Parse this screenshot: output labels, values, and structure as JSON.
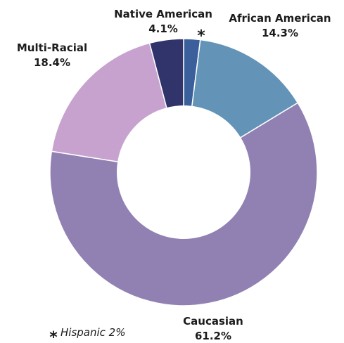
{
  "chart_data": {
    "type": "pie",
    "donut": true,
    "start_at": "12 o'clock",
    "direction": "clockwise",
    "slices": [
      {
        "label": "Hispanic",
        "value": 2.0,
        "display": "",
        "color": "#3a5f9a"
      },
      {
        "label": "African American",
        "value": 14.3,
        "display": "14.3%",
        "color": "#6394b8"
      },
      {
        "label": "Caucasian",
        "value": 61.2,
        "display": "61.2%",
        "color": "#9181b3"
      },
      {
        "label": "Multi-Racial",
        "value": 18.4,
        "display": "18.4%",
        "color": "#c8a2cf"
      },
      {
        "label": "Native American",
        "value": 4.1,
        "display": "4.1%",
        "color": "#31346b"
      }
    ],
    "asterisk": "*",
    "footnote": "Hispanic 2%"
  }
}
